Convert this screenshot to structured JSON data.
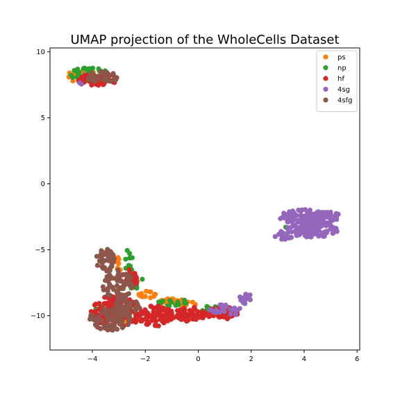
{
  "chart_data": {
    "type": "scatter",
    "title": "UMAP projection of the WholeCells Dataset",
    "xlabel": "",
    "ylabel": "",
    "xlim": [
      -5.6,
      6.1
    ],
    "ylim": [
      -12.6,
      10.3
    ],
    "xticks": [
      -4,
      -2,
      0,
      2,
      4,
      6
    ],
    "yticks": [
      10,
      5,
      0,
      -5,
      -10
    ],
    "grid": false,
    "legend_position": "top-right",
    "marker": "circle",
    "series": [
      {
        "name": "ps",
        "color": "#ff7f0e",
        "clusters": [
          {
            "cx": -4.3,
            "cy": 8.2,
            "rx": 0.65,
            "ry": 0.55,
            "n": 25
          },
          {
            "cx": -3.0,
            "cy": -6.0,
            "rx": 0.25,
            "ry": 0.8,
            "n": 10
          },
          {
            "cx": -1.9,
            "cy": -8.4,
            "rx": 0.35,
            "ry": 0.3,
            "n": 14
          },
          {
            "cx": -1.0,
            "cy": -8.9,
            "rx": 0.45,
            "ry": 0.2,
            "n": 14
          },
          {
            "cx": -0.4,
            "cy": -9.1,
            "rx": 0.35,
            "ry": 0.25,
            "n": 12
          },
          {
            "cx": -2.8,
            "cy": -10.0,
            "rx": 0.7,
            "ry": 0.6,
            "n": 10
          }
        ]
      },
      {
        "name": "np",
        "color": "#2ca02c",
        "clusters": [
          {
            "cx": -4.1,
            "cy": 8.3,
            "rx": 0.75,
            "ry": 0.5,
            "n": 40
          },
          {
            "cx": -2.6,
            "cy": -5.8,
            "rx": 0.2,
            "ry": 0.9,
            "n": 12
          },
          {
            "cx": -2.4,
            "cy": -7.4,
            "rx": 0.3,
            "ry": 0.6,
            "n": 12
          },
          {
            "cx": -1.0,
            "cy": -9.0,
            "rx": 0.6,
            "ry": 0.3,
            "n": 14
          },
          {
            "cx": 0.5,
            "cy": -9.4,
            "rx": 0.5,
            "ry": 0.3,
            "n": 12
          },
          {
            "cx": -3.2,
            "cy": -9.6,
            "rx": 0.7,
            "ry": 1.0,
            "n": 22
          },
          {
            "cx": 3.3,
            "cy": -3.3,
            "rx": 0.05,
            "ry": 0.05,
            "n": 1
          }
        ]
      },
      {
        "name": "hf",
        "color": "#d62728",
        "clusters": [
          {
            "cx": -3.8,
            "cy": 7.9,
            "rx": 0.75,
            "ry": 0.45,
            "n": 45
          },
          {
            "cx": -3.1,
            "cy": -9.7,
            "rx": 0.95,
            "ry": 1.25,
            "n": 130
          },
          {
            "cx": -1.6,
            "cy": -10.0,
            "rx": 0.7,
            "ry": 0.8,
            "n": 80
          },
          {
            "cx": -0.3,
            "cy": -9.9,
            "rx": 0.6,
            "ry": 0.55,
            "n": 60
          },
          {
            "cx": 0.9,
            "cy": -9.8,
            "rx": 0.6,
            "ry": 0.5,
            "n": 50
          },
          {
            "cx": -2.6,
            "cy": -7.2,
            "rx": 0.35,
            "ry": 0.7,
            "n": 20
          }
        ]
      },
      {
        "name": "4sg",
        "color": "#9467bd",
        "clusters": [
          {
            "cx": 4.2,
            "cy": -2.5,
            "rx": 1.2,
            "ry": 0.55,
            "n": 140
          },
          {
            "cx": 4.3,
            "cy": -3.5,
            "rx": 1.0,
            "ry": 0.55,
            "n": 120
          },
          {
            "cx": 3.2,
            "cy": -4.0,
            "rx": 0.35,
            "ry": 0.4,
            "n": 15
          },
          {
            "cx": 1.8,
            "cy": -8.7,
            "rx": 0.25,
            "ry": 0.4,
            "n": 14
          },
          {
            "cx": 1.0,
            "cy": -9.6,
            "rx": 0.6,
            "ry": 0.5,
            "n": 22
          },
          {
            "cx": -4.5,
            "cy": 7.6,
            "rx": 0.1,
            "ry": 0.1,
            "n": 2
          }
        ]
      },
      {
        "name": "4sfg",
        "color": "#8c564b",
        "clusters": [
          {
            "cx": -3.6,
            "cy": 8.1,
            "rx": 0.6,
            "ry": 0.45,
            "n": 35
          },
          {
            "cx": -3.5,
            "cy": -5.8,
            "rx": 0.35,
            "ry": 0.9,
            "n": 50
          },
          {
            "cx": -3.0,
            "cy": -7.7,
            "rx": 0.6,
            "ry": 1.2,
            "n": 70
          },
          {
            "cx": -3.3,
            "cy": -10.2,
            "rx": 0.8,
            "ry": 0.9,
            "n": 80
          },
          {
            "cx": -2.7,
            "cy": -9.3,
            "rx": 0.5,
            "ry": 0.5,
            "n": 30
          }
        ]
      }
    ]
  }
}
